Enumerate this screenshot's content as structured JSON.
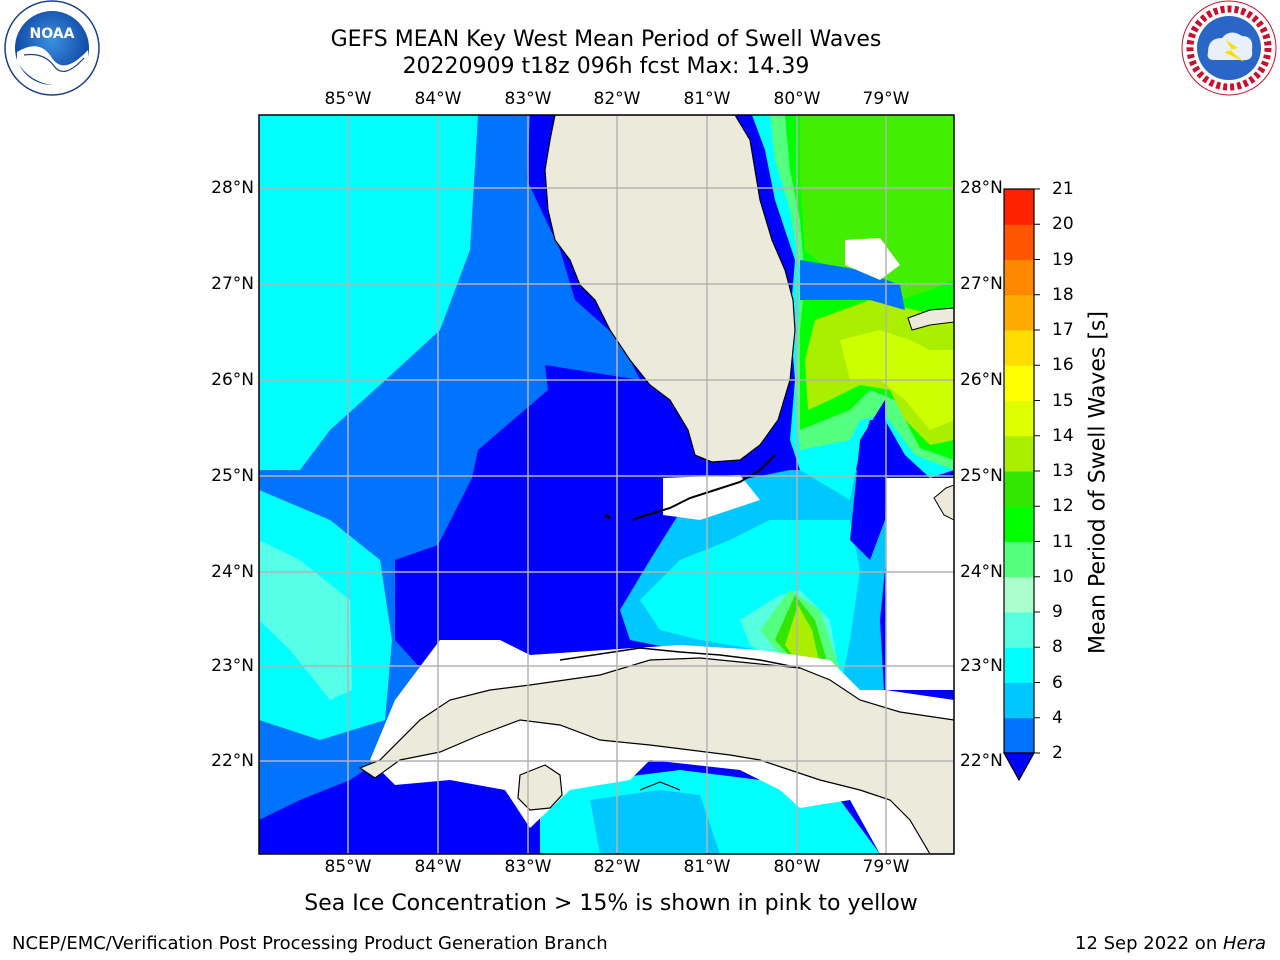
{
  "title": {
    "line1": "GEFS MEAN Key West Mean Period of Swell Waves",
    "line2": "20220909 t18z 096h fcst   Max: 14.39"
  },
  "map": {
    "lon_labels": [
      "85°W",
      "84°W",
      "83°W",
      "82°W",
      "81°W",
      "80°W",
      "79°W"
    ],
    "lat_labels": [
      "28°N",
      "27°N",
      "26°N",
      "25°N",
      "24°N",
      "23°N",
      "22°N"
    ],
    "colors": {
      "land": "#ecebdb",
      "grid": "#b4b4b4",
      "level_2_4": "#0000ff",
      "level_4_6": "#00ccff",
      "level_6_8": "#00ffff",
      "level_8_9": "#55ffff",
      "level_10_11": "#00ff00",
      "level_11_12": "#44e800",
      "level_12_13": "#aaee00",
      "level_13_14": "#ccff00"
    }
  },
  "colorbar": {
    "label": "Mean Period of Swell Waves [s]",
    "ticks": [
      "2",
      "4",
      "6",
      "8",
      "9",
      "10",
      "11",
      "12",
      "13",
      "14",
      "15",
      "16",
      "17",
      "18",
      "19",
      "20",
      "21"
    ],
    "levels": [
      {
        "from": 2,
        "to": 4,
        "color": "#0073ff"
      },
      {
        "from": 4,
        "to": 6,
        "color": "#00c8ff"
      },
      {
        "from": 6,
        "to": 8,
        "color": "#00ffff"
      },
      {
        "from": 8,
        "to": 9,
        "color": "#55ffe0"
      },
      {
        "from": 9,
        "to": 10,
        "color": "#aaffcc"
      },
      {
        "from": 10,
        "to": 11,
        "color": "#55ff80"
      },
      {
        "from": 11,
        "to": 12,
        "color": "#00ff00"
      },
      {
        "from": 12,
        "to": 13,
        "color": "#33e600"
      },
      {
        "from": 13,
        "to": 14,
        "color": "#aaee00"
      },
      {
        "from": 14,
        "to": 15,
        "color": "#ddff00"
      },
      {
        "from": 15,
        "to": 16,
        "color": "#ffff00"
      },
      {
        "from": 16,
        "to": 17,
        "color": "#ffdd00"
      },
      {
        "from": 17,
        "to": 18,
        "color": "#ffaa00"
      },
      {
        "from": 18,
        "to": 19,
        "color": "#ff8800"
      },
      {
        "from": 19,
        "to": 20,
        "color": "#ff5500"
      },
      {
        "from": 20,
        "to": 21,
        "color": "#ff2200"
      }
    ],
    "extend_color": "#0000ff"
  },
  "footer": {
    "note": "Sea Ice Concentration > 15% is shown in pink to yellow",
    "credit_left": "NCEP/EMC/Verification Post Processing Product Generation Branch",
    "credit_date": "12 Sep 2022 on ",
    "credit_host": "Hera"
  },
  "logos": {
    "noaa_text": "NOAA",
    "nws_text": "NATIONAL WEATHER SERVICE"
  }
}
